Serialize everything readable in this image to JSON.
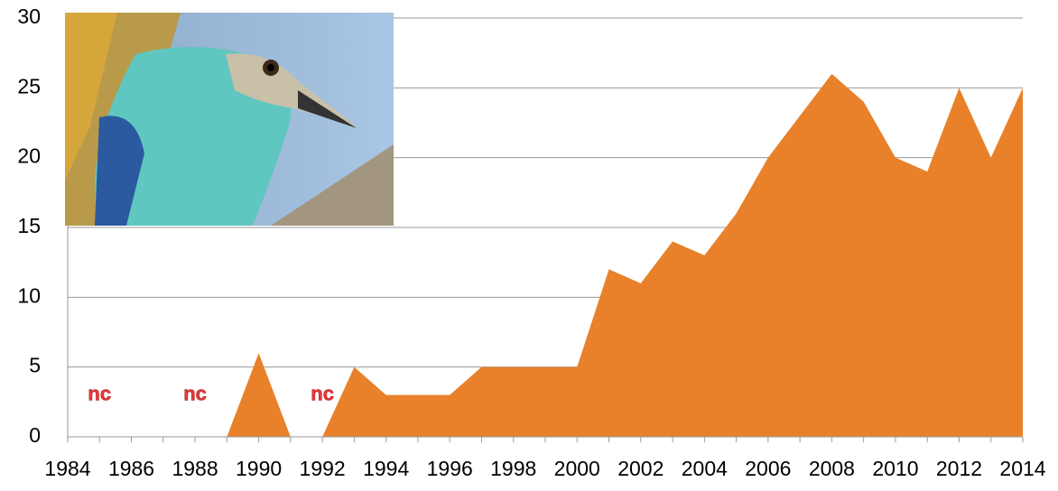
{
  "chart_data": {
    "type": "area",
    "color": "#e8812a",
    "grid": true,
    "x": [
      1984,
      1985,
      1986,
      1987,
      1988,
      1989,
      1990,
      1991,
      1992,
      1993,
      1994,
      1995,
      1996,
      1997,
      1998,
      1999,
      2000,
      2001,
      2002,
      2003,
      2004,
      2005,
      2006,
      2007,
      2008,
      2009,
      2010,
      2011,
      2012,
      2013,
      2014
    ],
    "values": [
      0,
      0,
      0,
      0,
      0,
      0,
      6,
      0,
      0,
      5,
      3,
      3,
      3,
      5,
      5,
      5,
      5,
      12,
      11,
      14,
      13,
      16,
      20,
      23,
      26,
      24,
      20,
      19,
      25,
      20,
      25
    ],
    "xlim": [
      1984,
      2014
    ],
    "xticks": [
      1984,
      1986,
      1988,
      1990,
      1992,
      1994,
      1996,
      1998,
      2000,
      2002,
      2004,
      2006,
      2008,
      2010,
      2012,
      2014
    ],
    "ylim": [
      0,
      30
    ],
    "yticks": [
      0,
      5,
      10,
      15,
      20,
      25,
      30
    ],
    "annotations": [
      {
        "text": "nc",
        "x": 1985
      },
      {
        "text": "nc",
        "x": 1988
      },
      {
        "text": "nc",
        "x": 1992
      }
    ]
  }
}
